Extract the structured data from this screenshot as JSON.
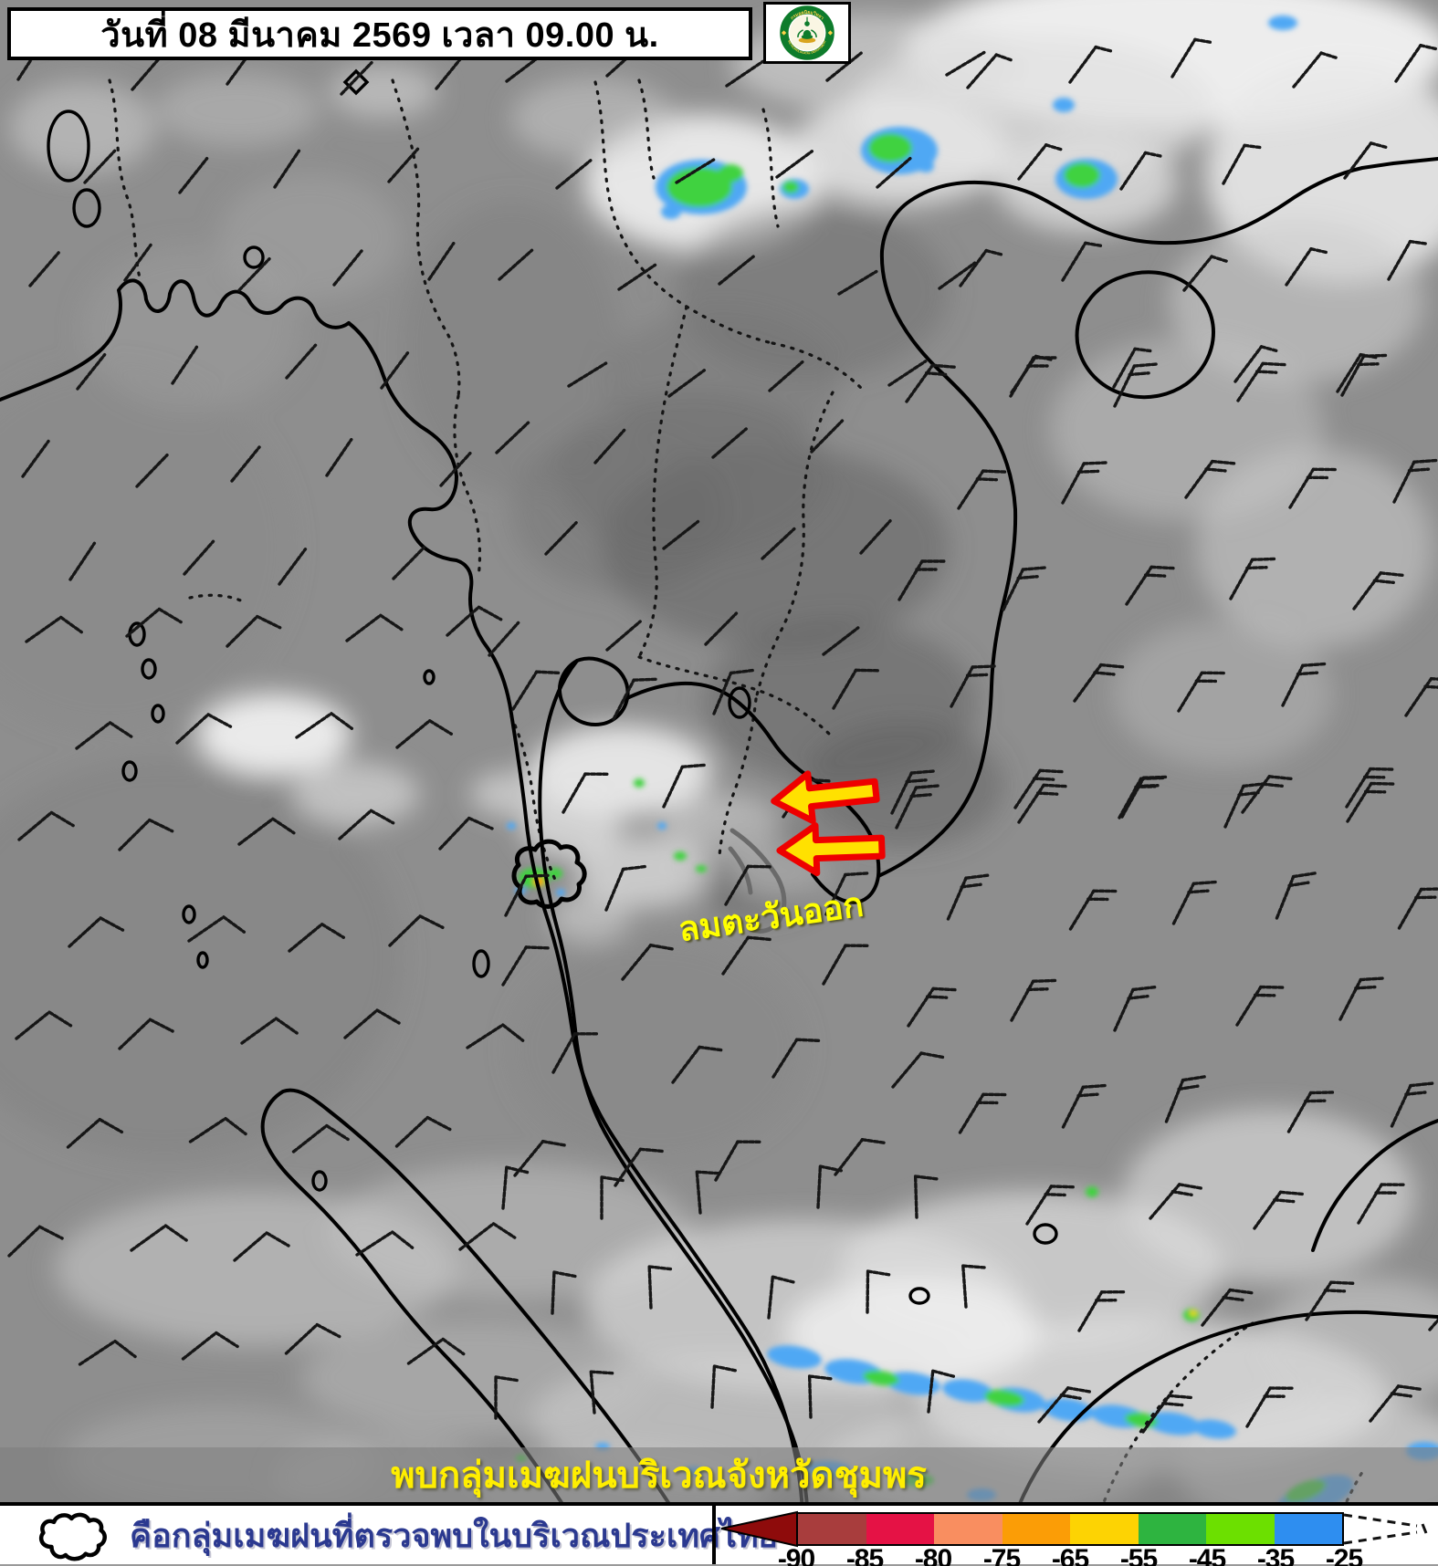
{
  "header": {
    "title": "วันที่ 08 มีนาคม 2569 เวลา 09.00 น.",
    "logo": {
      "name": "thai-meteorological-department-seal",
      "top_text": "กรมอุตุนิยมวิทยา",
      "bottom_text": "METEOROLOGICAL DEPARTMENT"
    }
  },
  "map": {
    "east_wind_label": "ลมตะวันออก",
    "announcement": "พบกลุ่มเมฆฝนบริเวณจังหวัดชุมพร",
    "annotation_colors": {
      "arrow_fill": "#ffe100",
      "arrow_outline": "#ee0000",
      "label_yellow": "#ffff00"
    },
    "rain_cell_colors": [
      "#4fa8f4",
      "#3fd23f",
      "#ffa400"
    ]
  },
  "legend": {
    "description": "คือกลุ่มเมฆฝนที่ตรวจพบในบริเวณประเทศไทย",
    "scale": {
      "pointer_color": "#8e0b0b",
      "segment_colors": [
        "#a83d3d",
        "#e51245",
        "#f98e60",
        "#fb9d06",
        "#fdd303",
        "#2eb440",
        "#6ce000",
        "#2e8ef0"
      ],
      "ticks": [
        "-90",
        "-85",
        "-80",
        "-75",
        "-65",
        "-55",
        "-45",
        "-35",
        "-25"
      ]
    }
  }
}
